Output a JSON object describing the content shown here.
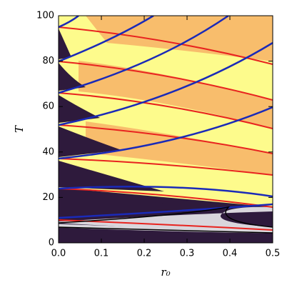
{
  "chart_data": {
    "type": "contour",
    "x_label": "r₀",
    "y_label": "T",
    "xlim": [
      0,
      0.5
    ],
    "ylim": [
      0,
      100
    ],
    "xticks": [
      {
        "value": 0,
        "label": "0.0"
      },
      0.1,
      0.2,
      0.3,
      0.4,
      0.5
    ],
    "yticks": [
      0,
      20,
      40,
      60,
      80,
      100
    ]
  }
}
